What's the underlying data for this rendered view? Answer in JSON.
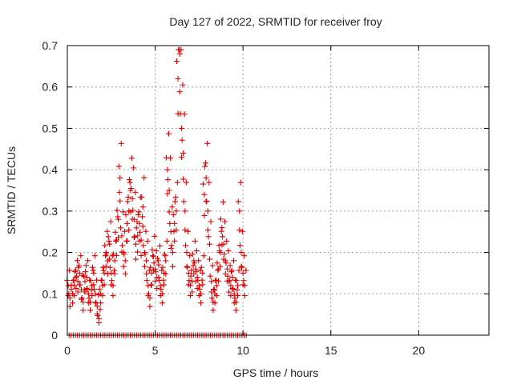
{
  "chart_data": {
    "type": "scatter",
    "title": "Day 127 of 2022, SRMTID for receiver froy",
    "xlabel": "GPS time / hours",
    "ylabel": "SRMTID / TECUs",
    "xlim": [
      0,
      24
    ],
    "ylim": [
      0,
      0.7
    ],
    "xticks": [
      "0",
      "5",
      "10",
      "15",
      "20"
    ],
    "yticks": [
      "0",
      "0.1",
      "0.2",
      "0.3",
      "0.4",
      "0.5",
      "0.6",
      "0.7"
    ],
    "grid": true,
    "legend": "none",
    "marker": "plus",
    "color": "#e00000",
    "series": [
      {
        "name": "SRMTID",
        "x": [
          0.05,
          0.15,
          0.3,
          0.4,
          0.5,
          0.6,
          0.7,
          0.8,
          0.9,
          1.0,
          1.1,
          1.2,
          1.3,
          1.4,
          1.5,
          1.6,
          1.7,
          1.8,
          1.9,
          2.0,
          2.1,
          2.2,
          2.3,
          2.4,
          2.5,
          2.6,
          2.7,
          2.8,
          2.9,
          3.0,
          3.1,
          3.2,
          3.3,
          3.4,
          3.5,
          3.6,
          3.7,
          3.8,
          3.9,
          4.0,
          4.1,
          4.2,
          4.3,
          4.4,
          4.5,
          4.6,
          4.7,
          4.8,
          4.9,
          5.0,
          5.1,
          5.2,
          5.3,
          5.4,
          5.5,
          5.6,
          5.7,
          5.8,
          5.9,
          6.0,
          6.1,
          6.2,
          6.3,
          6.4,
          6.5,
          6.6,
          6.7,
          6.8,
          6.9,
          7.0,
          7.1,
          7.2,
          7.3,
          7.4,
          7.5,
          7.6,
          7.7,
          7.8,
          7.9,
          8.0,
          8.1,
          8.2,
          8.3,
          8.4,
          8.5,
          8.6,
          8.7,
          8.8,
          8.9,
          9.0,
          9.1,
          9.2,
          9.3,
          9.4,
          9.5,
          9.6,
          9.7,
          9.8,
          9.9,
          10.0,
          10.1
        ],
        "y": [
          0.12,
          0.09,
          0.1,
          0.12,
          0.14,
          0.13,
          0.15,
          0.11,
          0.08,
          0.13,
          0.14,
          0.1,
          0.08,
          0.12,
          0.15,
          0.1,
          0.07,
          0.04,
          0.1,
          0.12,
          0.15,
          0.2,
          0.18,
          0.22,
          0.15,
          0.12,
          0.18,
          0.23,
          0.28,
          0.38,
          0.24,
          0.2,
          0.18,
          0.27,
          0.3,
          0.35,
          0.33,
          0.28,
          0.22,
          0.24,
          0.27,
          0.23,
          0.31,
          0.2,
          0.18,
          0.12,
          0.09,
          0.15,
          0.19,
          0.16,
          0.14,
          0.17,
          0.12,
          0.1,
          0.15,
          0.18,
          0.4,
          0.35,
          0.25,
          0.2,
          0.27,
          0.3,
          0.62,
          0.68,
          0.5,
          0.44,
          0.3,
          0.2,
          0.15,
          0.12,
          0.13,
          0.18,
          0.16,
          0.14,
          0.12,
          0.1,
          0.15,
          0.34,
          0.38,
          0.3,
          0.22,
          0.13,
          0.08,
          0.1,
          0.12,
          0.16,
          0.2,
          0.26,
          0.22,
          0.18,
          0.16,
          0.13,
          0.12,
          0.14,
          0.1,
          0.08,
          0.12,
          0.3,
          0.2,
          0.15,
          0.12
        ]
      },
      {
        "name": "SRMTID zero",
        "x_range": [
          0.1,
          10.2
        ],
        "y": 0
      }
    ]
  }
}
